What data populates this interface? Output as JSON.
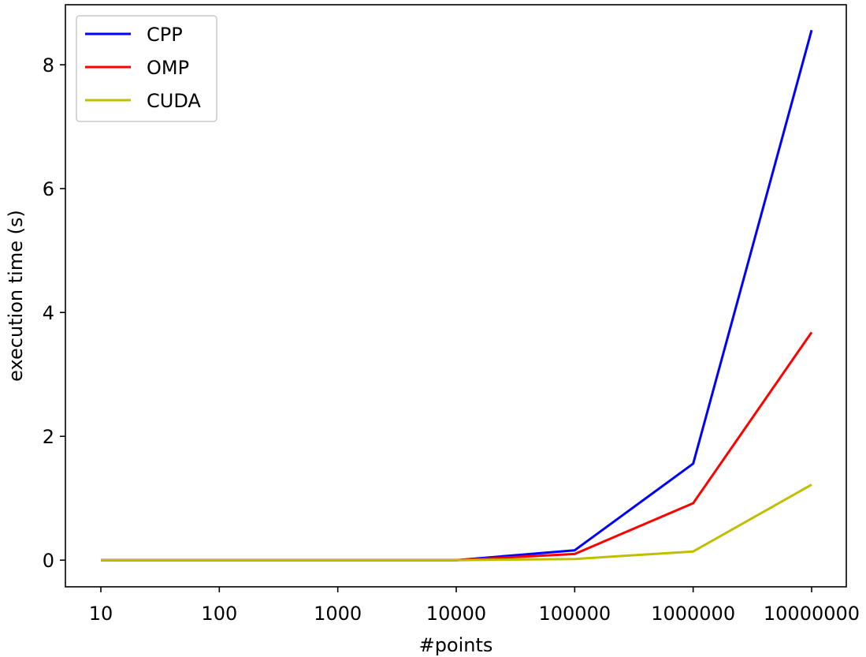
{
  "chart_data": {
    "type": "line",
    "title": "",
    "xlabel": "#points",
    "ylabel": "execution time (s)",
    "categories": [
      "10",
      "100",
      "1000",
      "10000",
      "100000",
      "1000000",
      "10000000"
    ],
    "yticks": [
      0,
      2,
      4,
      6,
      8
    ],
    "ylim": [
      -0.43,
      8.97
    ],
    "grid": false,
    "legend_position": "top-left",
    "series": [
      {
        "name": "CPP",
        "color": "#0000ff",
        "values": [
          0.0,
          0.0,
          0.0,
          0.0,
          0.16,
          1.56,
          8.56
        ]
      },
      {
        "name": "OMP",
        "color": "#ff0000",
        "values": [
          0.0,
          0.0,
          0.0,
          0.0,
          0.1,
          0.92,
          3.68
        ]
      },
      {
        "name": "CUDA",
        "color": "#bfbf00",
        "values": [
          0.0,
          0.0,
          0.0,
          0.0,
          0.02,
          0.14,
          1.22
        ]
      }
    ]
  }
}
